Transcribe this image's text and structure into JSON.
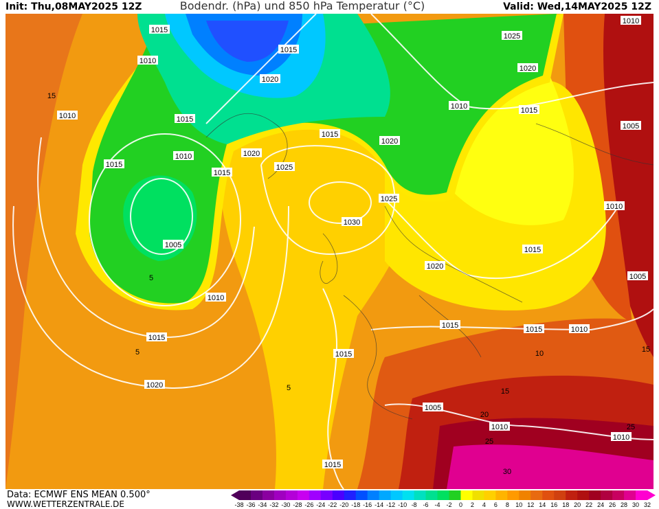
{
  "header": {
    "init": "Init: Thu,08MAY2025 12Z",
    "title": "Bodendr. (hPa) und 850 hPa Temperatur (°C)",
    "valid": "Valid: Wed,14MAY2025 12Z"
  },
  "footer": {
    "source": "Data: ECMWF ENS MEAN 0.500°",
    "website": "WWW.WETTERZENTRALE.DE"
  },
  "colorbar": {
    "ticks": [
      -38,
      -36,
      -34,
      -32,
      -30,
      -28,
      -26,
      -24,
      -22,
      -20,
      -18,
      -16,
      -14,
      -12,
      -10,
      -8,
      -6,
      -4,
      -2,
      0,
      2,
      4,
      6,
      8,
      10,
      12,
      14,
      16,
      18,
      20,
      22,
      24,
      26,
      28,
      30,
      32
    ],
    "colors": [
      "#50005a",
      "#6a0080",
      "#8a00a0",
      "#a000c0",
      "#b400d8",
      "#c800f0",
      "#a000ff",
      "#7800ff",
      "#4b00ff",
      "#2020ff",
      "#0050ff",
      "#0080ff",
      "#00a8ff",
      "#00c8ff",
      "#00e0f0",
      "#00e0c0",
      "#00e090",
      "#00e060",
      "#22d022",
      "#ffff00",
      "#f0e000",
      "#ffd000",
      "#ffb400",
      "#ff9a00",
      "#f08200",
      "#e86a10",
      "#e05010",
      "#d04010",
      "#c02010",
      "#b01010",
      "#a00020",
      "#b00040",
      "#c80060",
      "#e00090",
      "#ff00d0"
    ]
  },
  "isobar_labels": [
    1015,
    1010,
    1015,
    1020,
    1025,
    1010,
    1020,
    1010,
    1015,
    1010,
    1015,
    1005,
    1015,
    1020,
    1020,
    1010,
    1015,
    1025,
    1015,
    1025,
    1010,
    1030,
    1005,
    1015,
    1020,
    1005,
    1010,
    1015,
    1015,
    1010,
    1015,
    1015,
    1020,
    1005,
    1010,
    1010,
    1015
  ],
  "isotherm_labels": [
    15,
    5,
    5,
    5,
    10,
    15,
    20,
    25,
    30,
    25,
    15
  ]
}
